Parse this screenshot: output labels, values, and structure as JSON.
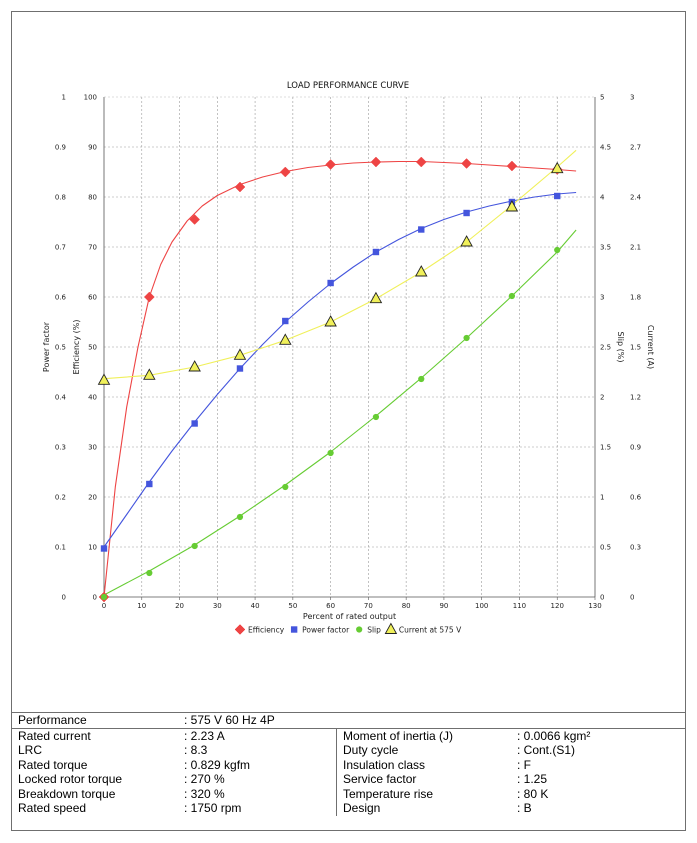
{
  "chart_data": {
    "type": "line",
    "title": "LOAD PERFORMANCE CURVE",
    "xlabel": "Percent of rated output",
    "xlim": [
      0,
      130
    ],
    "xticks": [
      "0",
      "10",
      "20",
      "30",
      "40",
      "50",
      "60",
      "70",
      "80",
      "90",
      "100",
      "110",
      "120",
      "130"
    ],
    "left_axes": [
      {
        "label": "Power factor",
        "lim": [
          0,
          1
        ],
        "ticks": [
          "0",
          "0.1",
          "0.2",
          "0.3",
          "0.4",
          "0.5",
          "0.6",
          "0.7",
          "0.8",
          "0.9",
          "1"
        ]
      },
      {
        "label": "Efficiency (%)",
        "lim": [
          0,
          100
        ],
        "ticks": [
          "0",
          "10",
          "20",
          "30",
          "40",
          "50",
          "60",
          "70",
          "80",
          "90",
          "100"
        ]
      }
    ],
    "right_axes": [
      {
        "label": "Slip (%)",
        "lim": [
          0,
          5
        ],
        "ticks": [
          "0",
          "0.5",
          "1",
          "1.5",
          "2",
          "2.5",
          "3",
          "3.5",
          "4",
          "4.5",
          "5"
        ]
      },
      {
        "label": "Current (A)",
        "lim": [
          0,
          3
        ],
        "ticks": [
          "0",
          "0.3",
          "0.6",
          "0.9",
          "1.2",
          "1.5",
          "1.8",
          "2.1",
          "2.4",
          "2.7",
          "3"
        ]
      }
    ],
    "grid": true,
    "legend_position": "bottom",
    "series": [
      {
        "name": "Efficiency",
        "axis": "Efficiency (%)",
        "color": "#ee4444",
        "marker": "diamond",
        "x": [
          0,
          12,
          24,
          36,
          48,
          60,
          72,
          84,
          96,
          108,
          120
        ],
        "y": [
          0,
          60,
          75.5,
          82,
          85,
          86.5,
          87,
          87,
          86.7,
          86.2,
          85.5
        ],
        "curve_x": [
          0,
          3,
          6,
          9,
          12,
          15,
          18,
          22,
          26,
          30,
          36,
          42,
          48,
          54,
          60,
          66,
          72,
          78,
          84,
          90,
          96,
          102,
          108,
          114,
          120,
          125
        ],
        "curve_y": [
          0,
          22,
          38,
          50,
          60,
          66.5,
          71,
          75.2,
          78.2,
          80.3,
          82.5,
          84,
          85.1,
          85.9,
          86.4,
          86.8,
          87,
          87.1,
          87.1,
          86.9,
          86.7,
          86.4,
          86.1,
          85.8,
          85.5,
          85.2
        ]
      },
      {
        "name": "Power factor",
        "axis": "Power factor",
        "color": "#4455dd",
        "marker": "square",
        "x": [
          0,
          12,
          24,
          36,
          48,
          60,
          72,
          84,
          96,
          108,
          120
        ],
        "y": [
          0.097,
          0.226,
          0.347,
          0.457,
          0.552,
          0.628,
          0.69,
          0.735,
          0.768,
          0.79,
          0.802
        ],
        "curve_x": [
          0,
          6,
          12,
          18,
          24,
          30,
          36,
          42,
          48,
          54,
          60,
          66,
          72,
          78,
          84,
          90,
          96,
          102,
          108,
          114,
          120,
          125
        ],
        "curve_y": [
          0.1,
          0.165,
          0.23,
          0.292,
          0.35,
          0.405,
          0.457,
          0.505,
          0.55,
          0.59,
          0.627,
          0.66,
          0.69,
          0.715,
          0.737,
          0.755,
          0.77,
          0.782,
          0.792,
          0.8,
          0.806,
          0.809
        ]
      },
      {
        "name": "Slip",
        "axis": "Slip (%)",
        "color": "#66cc33",
        "marker": "circle",
        "x": [
          0,
          12,
          24,
          36,
          48,
          60,
          72,
          84,
          96,
          108,
          120
        ],
        "y": [
          0,
          0.24,
          0.51,
          0.8,
          1.1,
          1.44,
          1.8,
          2.18,
          2.59,
          3.01,
          3.47
        ],
        "curve_x": [
          0,
          12,
          24,
          36,
          48,
          60,
          72,
          84,
          96,
          108,
          120,
          125
        ],
        "curve_y": [
          0.02,
          0.26,
          0.52,
          0.81,
          1.12,
          1.45,
          1.81,
          2.19,
          2.59,
          3.01,
          3.45,
          3.67
        ]
      },
      {
        "name": "Current at 575 V",
        "axis": "Current (A)",
        "color": "#f0f05a",
        "marker": "triangle",
        "x": [
          0,
          12,
          24,
          36,
          48,
          60,
          72,
          84,
          96,
          108,
          120
        ],
        "y": [
          1.3,
          1.33,
          1.38,
          1.45,
          1.54,
          1.65,
          1.79,
          1.95,
          2.13,
          2.34,
          2.57
        ],
        "curve_x": [
          0,
          12,
          24,
          36,
          48,
          60,
          72,
          84,
          96,
          108,
          120,
          125
        ],
        "curve_y": [
          1.31,
          1.33,
          1.38,
          1.45,
          1.54,
          1.65,
          1.79,
          1.95,
          2.13,
          2.35,
          2.58,
          2.68
        ]
      }
    ]
  },
  "specs": {
    "performance_label": "Performance",
    "performance_value": ": 575 V 60 Hz 4P",
    "left": [
      {
        "label": "Rated current",
        "value": ": 2.23 A"
      },
      {
        "label": "LRC",
        "value": ": 8.3"
      },
      {
        "label": "Rated torque",
        "value": ": 0.829 kgfm"
      },
      {
        "label": "Locked rotor torque",
        "value": ": 270 %"
      },
      {
        "label": "Breakdown torque",
        "value": ": 320 %"
      },
      {
        "label": "Rated speed",
        "value": ": 1750 rpm"
      }
    ],
    "right": [
      {
        "label": "Moment of inertia (J)",
        "value": ": 0.0066 kgm²"
      },
      {
        "label": "Duty cycle",
        "value": ": Cont.(S1)"
      },
      {
        "label": "Insulation class",
        "value": ": F"
      },
      {
        "label": "Service factor",
        "value": ": 1.25"
      },
      {
        "label": "Temperature rise",
        "value": ": 80 K"
      },
      {
        "label": "Design",
        "value": ": B"
      }
    ]
  }
}
